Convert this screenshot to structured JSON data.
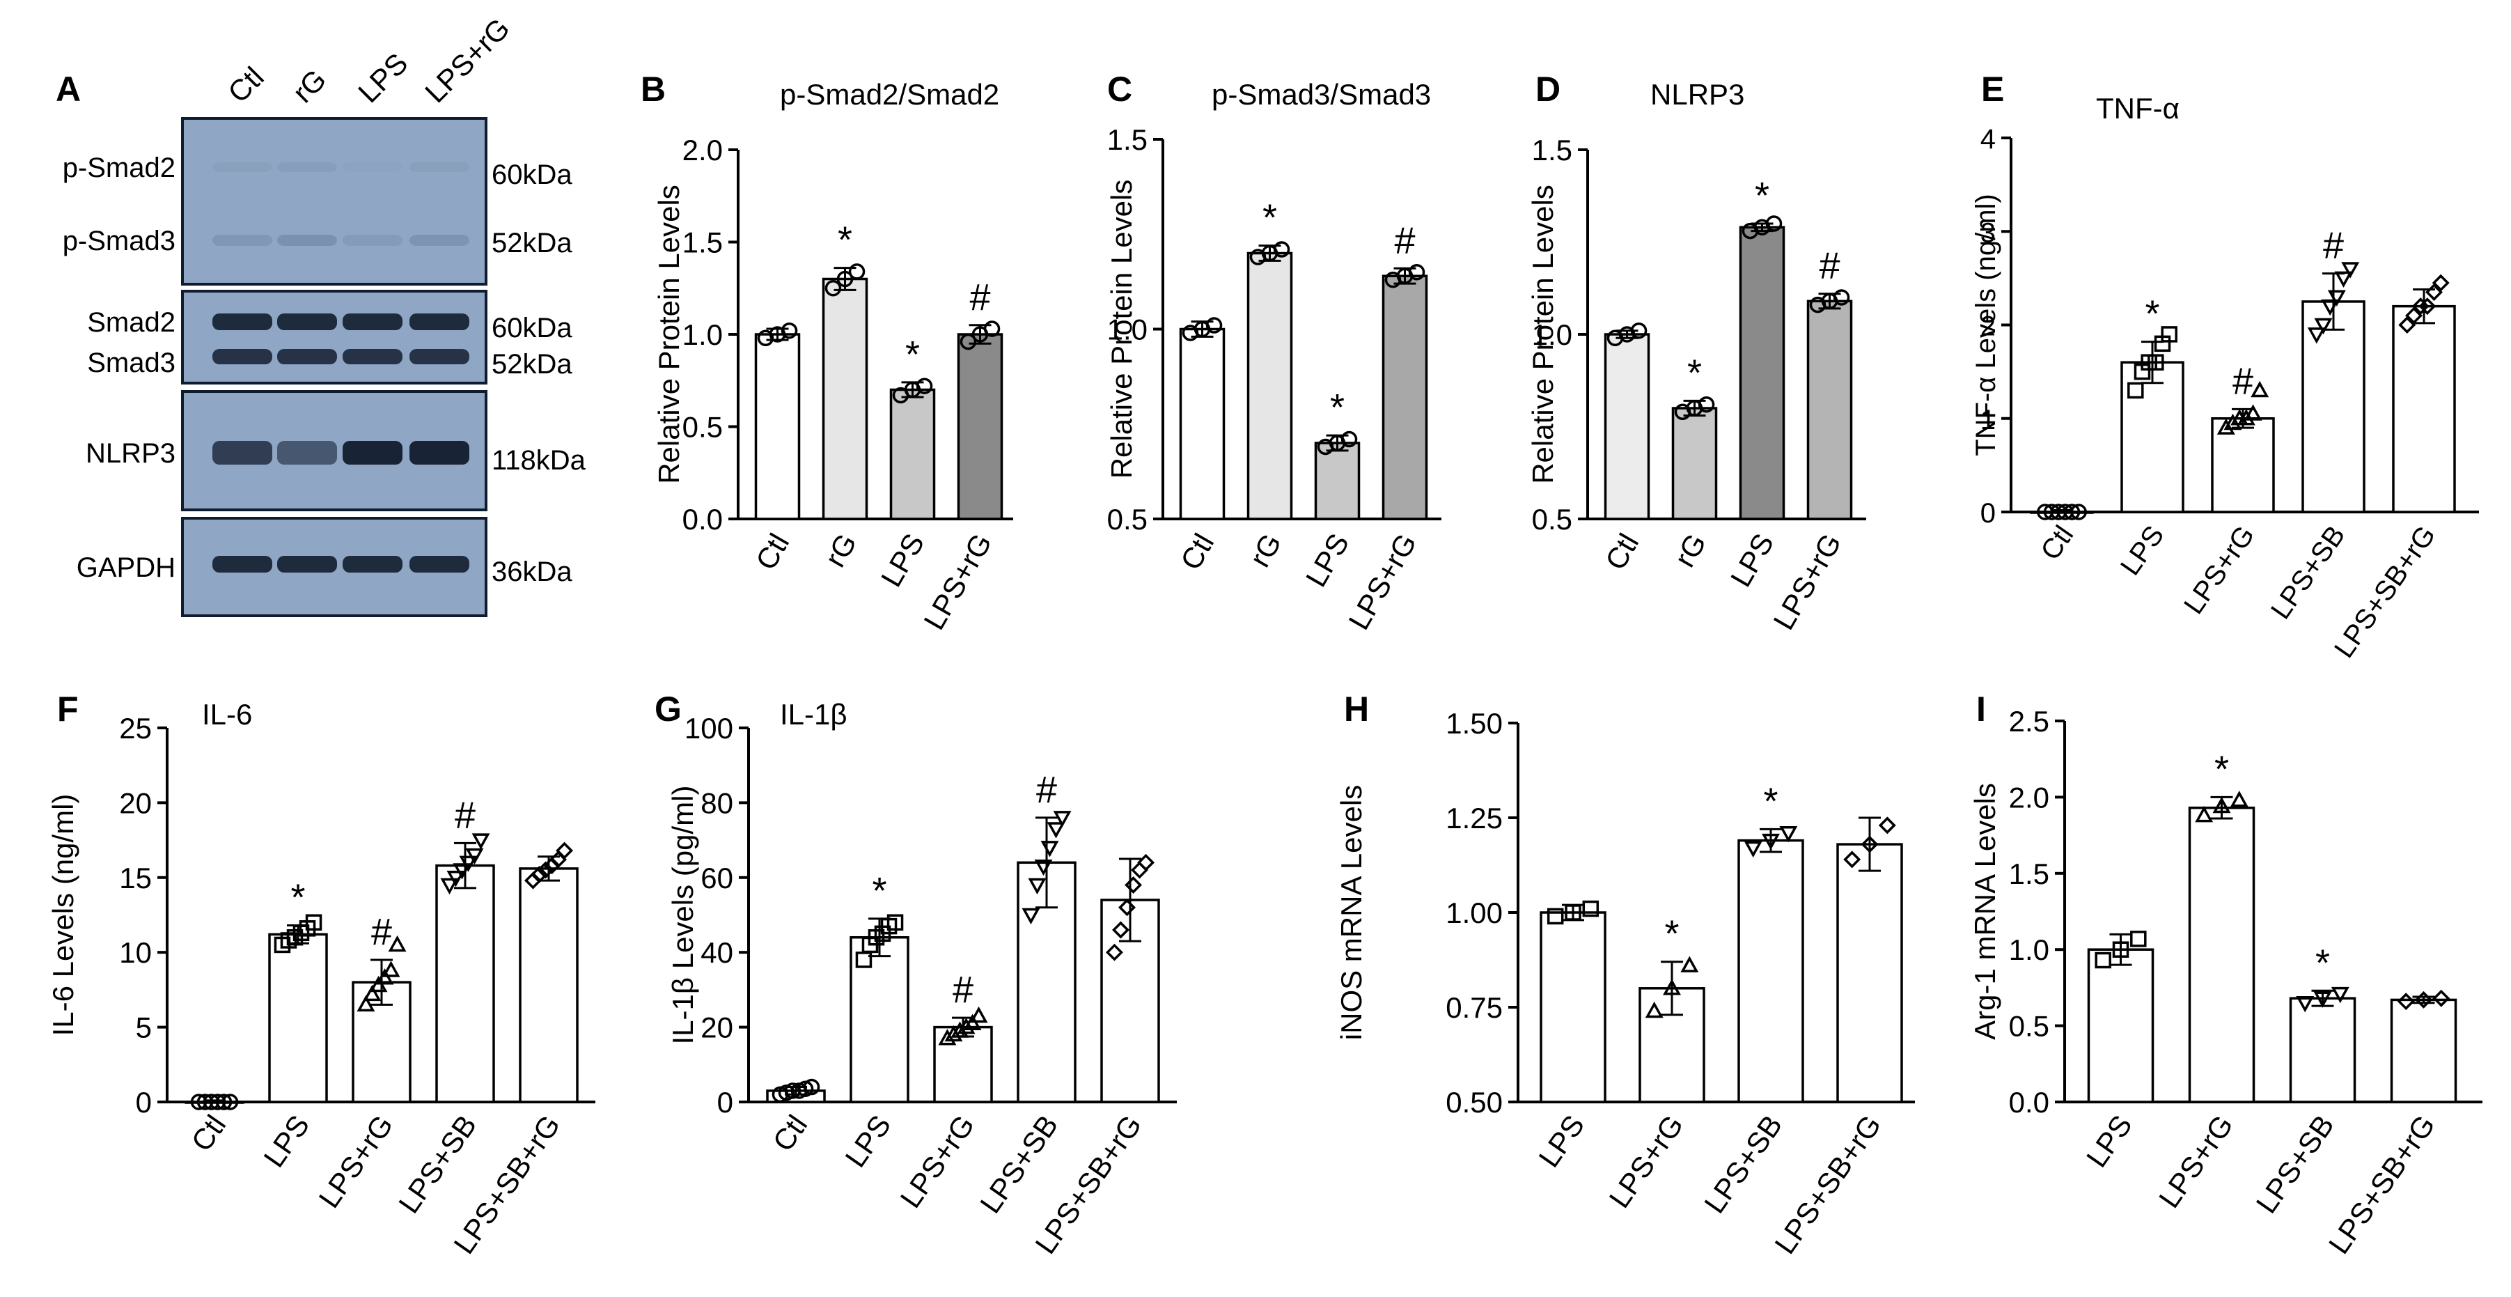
{
  "blot": {
    "panel_letter": "A",
    "lanes": [
      "Ctl",
      "rG",
      "LPS",
      "LPS+rG"
    ],
    "row_labels": [
      "p-Smad2",
      "p-Smad3",
      "Smad2",
      "Smad3",
      "NLRP3",
      "GAPDH"
    ],
    "kda_labels": [
      "60kDa",
      "52kDa",
      "60kDa",
      "52kDa",
      "118kDa",
      "36kDa"
    ]
  },
  "chart_data": [
    {
      "panel": "B",
      "type": "bar",
      "title": "p-Smad2/Smad2",
      "ylabel": "Relative Protein Levels",
      "xlabel": "",
      "categories": [
        "Ctl",
        "rG",
        "LPS",
        "LPS+rG"
      ],
      "values": [
        1.0,
        1.3,
        0.7,
        1.0
      ],
      "errors": [
        0.03,
        0.06,
        0.04,
        0.05
      ],
      "points": [
        [
          0.98,
          1.0,
          1.02
        ],
        [
          1.25,
          1.3,
          1.34
        ],
        [
          0.67,
          0.7,
          0.72
        ],
        [
          0.96,
          1.0,
          1.03
        ]
      ],
      "marker": "circle",
      "fills": [
        "#ffffff",
        "#e6e6e6",
        "#c8c8c8",
        "#8a8a8a"
      ],
      "ylim": [
        0,
        2.0
      ],
      "yticks": [
        "0.0",
        "0.5",
        "1.0",
        "1.5",
        "2.0"
      ],
      "annotations": [
        "",
        "*",
        "*",
        "#"
      ]
    },
    {
      "panel": "C",
      "type": "bar",
      "title": "p-Smad3/Smad3",
      "ylabel": "Relative Protein Levels",
      "xlabel": "",
      "categories": [
        "Ctl",
        "rG",
        "LPS",
        "LPS+rG"
      ],
      "values": [
        1.0,
        1.2,
        0.7,
        1.14
      ],
      "errors": [
        0.02,
        0.02,
        0.02,
        0.02
      ],
      "points": [
        [
          0.99,
          1.0,
          1.01
        ],
        [
          1.19,
          1.2,
          1.21
        ],
        [
          0.69,
          0.7,
          0.71
        ],
        [
          1.13,
          1.14,
          1.15
        ]
      ],
      "marker": "circle",
      "fills": [
        "#ffffff",
        "#e6e6e6",
        "#c8c8c8",
        "#a8a8a8"
      ],
      "ylim": [
        0.5,
        1.5
      ],
      "yticks": [
        "0.5",
        "1.0",
        "1.5"
      ],
      "annotations": [
        "",
        "*",
        "*",
        "#"
      ]
    },
    {
      "panel": "D",
      "type": "bar",
      "title": "NLRP3",
      "ylabel": "Relative Protein Levels",
      "xlabel": "",
      "categories": [
        "Ctl",
        "rG",
        "LPS",
        "LPS+rG"
      ],
      "values": [
        1.0,
        0.8,
        1.29,
        1.09
      ],
      "errors": [
        0.01,
        0.02,
        0.01,
        0.02
      ],
      "points": [
        [
          0.99,
          1.0,
          1.01
        ],
        [
          0.79,
          0.8,
          0.81
        ],
        [
          1.28,
          1.29,
          1.3
        ],
        [
          1.08,
          1.09,
          1.1
        ]
      ],
      "marker": "circle",
      "fills": [
        "#ececec",
        "#c8c8c8",
        "#8a8a8a",
        "#b4b4b4"
      ],
      "ylim": [
        0.5,
        1.5
      ],
      "yticks": [
        "0.5",
        "1.0",
        "1.5"
      ],
      "annotations": [
        "",
        "*",
        "*",
        "#"
      ]
    },
    {
      "panel": "E",
      "type": "bar",
      "title": "TNF-α",
      "ylabel": "TNF-α Levels (ng/ml)",
      "xlabel": "",
      "categories": [
        "Ctl",
        "LPS",
        "LPS+rG",
        "LPS+SB",
        "LPS+SB+rG"
      ],
      "values": [
        0.0,
        1.6,
        1.0,
        2.25,
        2.2
      ],
      "errors": [
        0.02,
        0.22,
        0.1,
        0.3,
        0.18
      ],
      "points": [
        [
          0,
          0,
          0,
          0,
          0,
          0
        ],
        [
          1.3,
          1.5,
          1.6,
          1.6,
          1.8,
          1.9
        ],
        [
          0.9,
          0.95,
          1.0,
          1.0,
          1.05,
          1.3
        ],
        [
          1.9,
          2.0,
          2.2,
          2.3,
          2.5,
          2.6
        ],
        [
          2.0,
          2.1,
          2.2,
          2.2,
          2.35,
          2.45
        ]
      ],
      "markers": [
        "circle",
        "square",
        "triangle",
        "triangle-down",
        "diamond"
      ],
      "fills": [
        "#ffffff",
        "#ffffff",
        "#ffffff",
        "#ffffff",
        "#ffffff"
      ],
      "ylim": [
        0,
        4
      ],
      "yticks": [
        "0",
        "1",
        "2",
        "3",
        "4"
      ],
      "annotations": [
        "",
        "*",
        "#",
        "#",
        ""
      ]
    },
    {
      "panel": "F",
      "type": "bar",
      "title": "IL-6",
      "ylabel": "IL-6 Levels (ng/ml)",
      "xlabel": "",
      "categories": [
        "Ctl",
        "LPS",
        "LPS+rG",
        "LPS+SB",
        "LPS+SB+rG"
      ],
      "values": [
        0.0,
        11.2,
        8.0,
        15.8,
        15.6
      ],
      "errors": [
        0.1,
        0.6,
        1.5,
        1.5,
        0.8
      ],
      "points": [
        [
          0,
          0,
          0,
          0,
          0,
          0
        ],
        [
          10.5,
          10.8,
          11.0,
          11.3,
          11.6,
          12.0
        ],
        [
          6.5,
          7.2,
          7.8,
          8.3,
          8.8,
          10.5
        ],
        [
          14.5,
          15.0,
          15.5,
          16.0,
          16.5,
          17.5
        ],
        [
          14.8,
          15.2,
          15.5,
          15.8,
          16.2,
          16.8
        ]
      ],
      "markers": [
        "circle",
        "square",
        "triangle",
        "triangle-down",
        "diamond"
      ],
      "fills": [
        "#ffffff",
        "#ffffff",
        "#ffffff",
        "#ffffff",
        "#ffffff"
      ],
      "ylim": [
        0,
        25
      ],
      "yticks": [
        "0",
        "5",
        "10",
        "15",
        "20",
        "25"
      ],
      "annotations": [
        "",
        "*",
        "#",
        "#",
        ""
      ]
    },
    {
      "panel": "G",
      "type": "bar",
      "title": "IL-1β",
      "ylabel": "IL-1β Levels (pg/ml)",
      "xlabel": "",
      "categories": [
        "Ctl",
        "LPS",
        "LPS+rG",
        "LPS+SB",
        "LPS+SB+rG"
      ],
      "values": [
        3.0,
        44.0,
        20.0,
        64.0,
        54.0
      ],
      "errors": [
        1.0,
        5.0,
        2.5,
        12.0,
        11.0
      ],
      "points": [
        [
          2.0,
          2.5,
          3.0,
          3.0,
          3.5,
          4.0
        ],
        [
          38,
          42,
          44,
          45,
          47,
          48
        ],
        [
          17,
          18,
          19,
          20,
          21,
          23
        ],
        [
          50,
          58,
          63,
          68,
          73,
          76
        ],
        [
          40,
          46,
          52,
          58,
          62,
          64
        ]
      ],
      "markers": [
        "circle",
        "square",
        "triangle",
        "triangle-down",
        "diamond"
      ],
      "fills": [
        "#ffffff",
        "#ffffff",
        "#ffffff",
        "#ffffff",
        "#ffffff"
      ],
      "ylim": [
        0,
        100
      ],
      "yticks": [
        "0",
        "20",
        "40",
        "60",
        "80",
        "100"
      ],
      "annotations": [
        "",
        "*",
        "#",
        "#",
        ""
      ]
    },
    {
      "panel": "H",
      "type": "bar",
      "title": "",
      "ylabel": "iNOS mRNA Levels",
      "xlabel": "",
      "categories": [
        "LPS",
        "LPS+rG",
        "LPS+SB",
        "LPS+SB+rG"
      ],
      "values": [
        1.0,
        0.8,
        1.19,
        1.18
      ],
      "errors": [
        0.02,
        0.07,
        0.03,
        0.07
      ],
      "points": [
        [
          0.99,
          1.0,
          1.01
        ],
        [
          0.74,
          0.8,
          0.86
        ],
        [
          1.17,
          1.19,
          1.21
        ],
        [
          1.14,
          1.18,
          1.23
        ]
      ],
      "markers": [
        "square",
        "triangle",
        "triangle-down",
        "diamond"
      ],
      "fills": [
        "#ffffff",
        "#ffffff",
        "#ffffff",
        "#ffffff"
      ],
      "ylim": [
        0.5,
        1.5
      ],
      "yticks": [
        "0.50",
        "0.75",
        "1.00",
        "1.25",
        "1.50"
      ],
      "annotations": [
        "",
        "*",
        "*",
        ""
      ]
    },
    {
      "panel": "I",
      "type": "bar",
      "title": "",
      "ylabel": "Arg-1 mRNA Levels",
      "xlabel": "",
      "categories": [
        "LPS",
        "LPS+rG",
        "LPS+SB",
        "LPS+SB+rG"
      ],
      "values": [
        1.0,
        1.93,
        0.68,
        0.67
      ],
      "errors": [
        0.1,
        0.07,
        0.05,
        0.02
      ],
      "points": [
        [
          0.93,
          1.0,
          1.07
        ],
        [
          1.88,
          1.94,
          1.98
        ],
        [
          0.65,
          0.68,
          0.71
        ],
        [
          0.66,
          0.67,
          0.68
        ]
      ],
      "markers": [
        "square",
        "triangle",
        "triangle-down",
        "diamond"
      ],
      "fills": [
        "#ffffff",
        "#ffffff",
        "#ffffff",
        "#ffffff"
      ],
      "ylim": [
        0,
        2.5
      ],
      "yticks": [
        "0.0",
        "0.5",
        "1.0",
        "1.5",
        "2.0",
        "2.5"
      ],
      "annotations": [
        "",
        "*",
        "*",
        ""
      ]
    }
  ]
}
